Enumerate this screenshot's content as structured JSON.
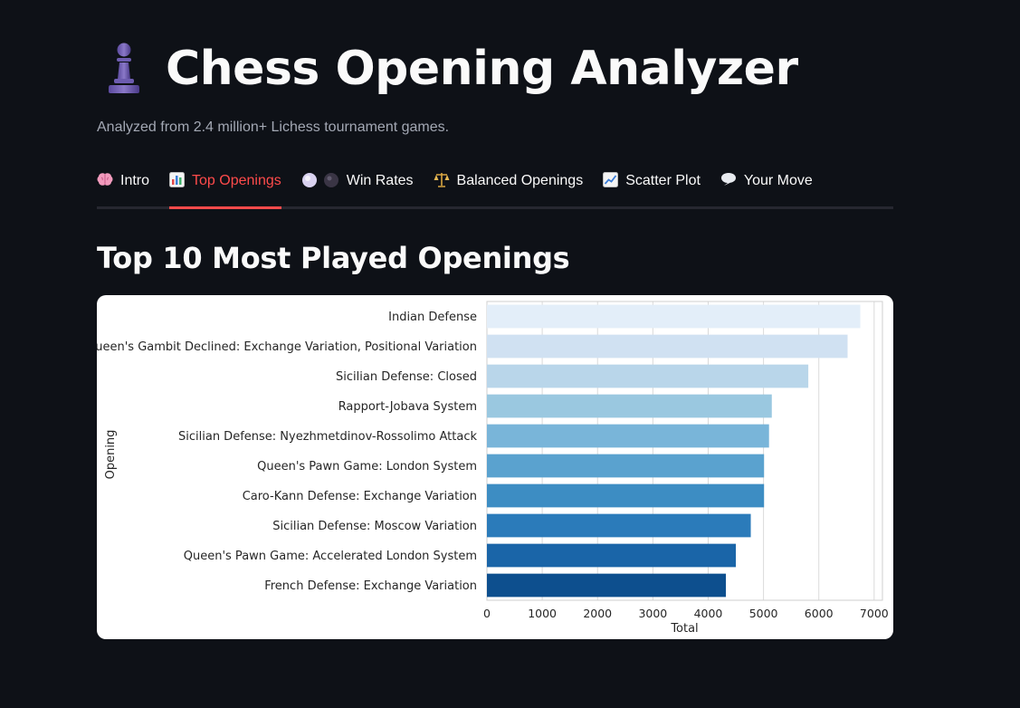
{
  "app": {
    "title": "Chess Opening Analyzer",
    "subtitle": "Analyzed from 2.4 million+ Lichess tournament games."
  },
  "tabs": [
    {
      "icon": "brain-icon",
      "label": "Intro",
      "active": false
    },
    {
      "icon": "bar-chart-icon",
      "label": "Top Openings",
      "active": true
    },
    {
      "icon": "white-black-circles-icon",
      "label": "Win Rates",
      "active": false
    },
    {
      "icon": "balance-scale-icon",
      "label": "Balanced Openings",
      "active": false
    },
    {
      "icon": "trend-chart-icon",
      "label": "Scatter Plot",
      "active": false
    },
    {
      "icon": "speech-bubble-icon",
      "label": "Your Move",
      "active": false
    }
  ],
  "section": {
    "title": "Top 10 Most Played Openings"
  },
  "colors": {
    "background": "#0e1117",
    "accent": "#ff4b4b",
    "bar_palette": [
      "#e3eef9",
      "#d0e1f2",
      "#b9d6ea",
      "#9ac8e0",
      "#79b5d9",
      "#5aa2cf",
      "#3d8dc3",
      "#2b7bba",
      "#1a65a8",
      "#0d4f8e"
    ]
  },
  "chart_data": {
    "type": "bar",
    "orientation": "horizontal",
    "categories": [
      "Indian Defense",
      "Queen's Gambit Declined: Exchange Variation, Positional Variation",
      "Sicilian Defense: Closed",
      "Rapport-Jobava System",
      "Sicilian Defense: Nyezhmetdinov-Rossolimo Attack",
      "Queen's Pawn Game: London System",
      "Caro-Kann Defense: Exchange Variation",
      "Sicilian Defense: Moscow Variation",
      "Queen's Pawn Game: Accelerated London System",
      "French Defense: Exchange Variation"
    ],
    "values": [
      6750,
      6520,
      5810,
      5150,
      5100,
      5010,
      5010,
      4770,
      4500,
      4320
    ],
    "xlabel": "Total",
    "ylabel": "Opening",
    "xlim": [
      0,
      7150
    ],
    "xticks": [
      0,
      1000,
      2000,
      3000,
      4000,
      5000,
      6000,
      7000
    ],
    "grid": "vertical"
  }
}
